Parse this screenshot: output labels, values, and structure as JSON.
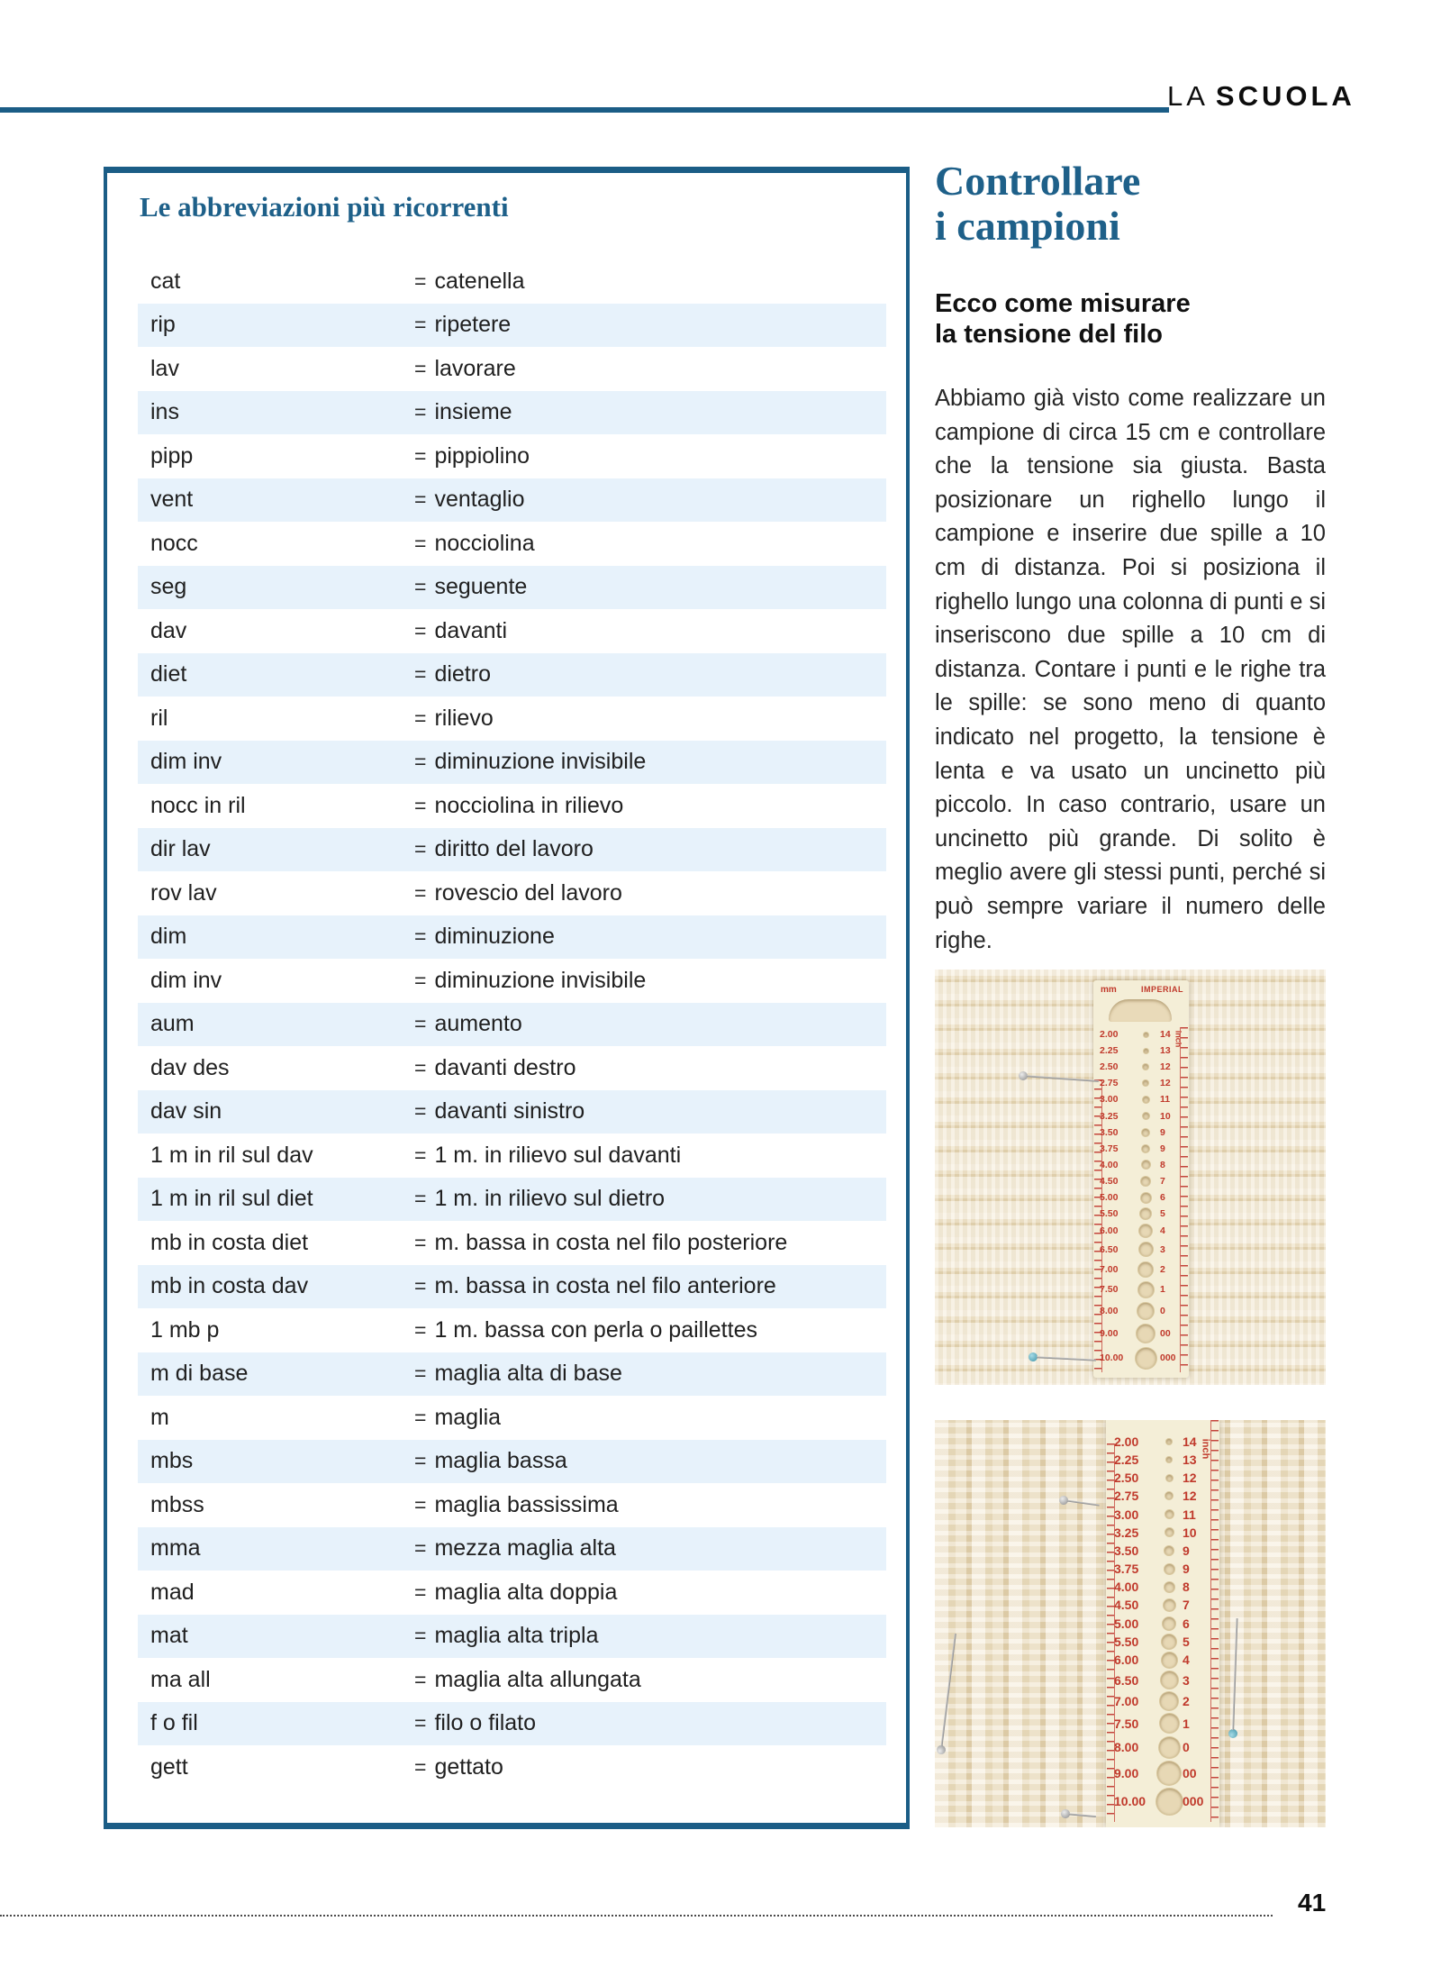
{
  "header": {
    "section_light": "LA",
    "section_bold": "SCUOLA"
  },
  "abbrev_table": {
    "title": "Le abbreviazioni più ricorrenti",
    "equals_sign": "=",
    "rows": [
      {
        "abbr": "cat",
        "meaning": "catenella"
      },
      {
        "abbr": "rip",
        "meaning": "ripetere"
      },
      {
        "abbr": "lav",
        "meaning": "lavorare"
      },
      {
        "abbr": "ins",
        "meaning": "insieme"
      },
      {
        "abbr": "pipp",
        "meaning": "pippiolino"
      },
      {
        "abbr": "vent",
        "meaning": "ventaglio"
      },
      {
        "abbr": "nocc",
        "meaning": "nocciolina"
      },
      {
        "abbr": "seg",
        "meaning": "seguente"
      },
      {
        "abbr": "dav",
        "meaning": "davanti"
      },
      {
        "abbr": "diet",
        "meaning": "dietro"
      },
      {
        "abbr": "ril",
        "meaning": "rilievo"
      },
      {
        "abbr": "dim inv",
        "meaning": "diminuzione invisibile"
      },
      {
        "abbr": "nocc in ril",
        "meaning": "nocciolina in rilievo"
      },
      {
        "abbr": "dir lav",
        "meaning": "diritto del lavoro"
      },
      {
        "abbr": "rov lav",
        "meaning": "rovescio del lavoro"
      },
      {
        "abbr": "dim",
        "meaning": "diminuzione"
      },
      {
        "abbr": "dim inv",
        "meaning": "diminuzione invisibile"
      },
      {
        "abbr": "aum",
        "meaning": "aumento"
      },
      {
        "abbr": "dav des",
        "meaning": "davanti destro"
      },
      {
        "abbr": "dav sin",
        "meaning": "davanti sinistro"
      },
      {
        "abbr": "1 m in ril sul dav",
        "meaning": "1 m. in rilievo sul davanti"
      },
      {
        "abbr": "1 m in ril sul diet",
        "meaning": "1 m. in rilievo sul dietro"
      },
      {
        "abbr": "mb in costa diet",
        "meaning": "m. bassa in costa nel filo posteriore"
      },
      {
        "abbr": "mb in costa dav",
        "meaning": "m. bassa in costa nel filo anteriore"
      },
      {
        "abbr": "1 mb p",
        "meaning": "1 m. bassa con perla o paillettes"
      },
      {
        "abbr": "m di base",
        "meaning": "maglia alta di base"
      },
      {
        "abbr": "m",
        "meaning": "maglia"
      },
      {
        "abbr": "mbs",
        "meaning": "maglia bassa"
      },
      {
        "abbr": "mbss",
        "meaning": "maglia bassissima"
      },
      {
        "abbr": "mma",
        "meaning": "mezza maglia alta"
      },
      {
        "abbr": "mad",
        "meaning": "maglia alta doppia"
      },
      {
        "abbr": "mat",
        "meaning": "maglia alta tripla"
      },
      {
        "abbr": "ma all",
        "meaning": "maglia alta allungata"
      },
      {
        "abbr": "f o fil",
        "meaning": "filo o filato"
      },
      {
        "abbr": "gett",
        "meaning": "gettato"
      }
    ]
  },
  "article": {
    "title_line1": "Controllare",
    "title_line2": "i campioni",
    "subtitle_line1": "Ecco come misurare",
    "subtitle_line2": "la tensione del filo",
    "body": "Abbiamo già visto come realizzare un campione di circa 15 cm e controllare che la tensione sia giusta. Basta posizionare un righello lungo il campione e inserire due spille a 10 cm di distanza. Poi si posiziona il righello lungo una colonna di punti e si inseriscono due spille a 10 cm di distanza. Contare i punti e le righe tra le spille: se sono meno di quanto indicato nel progetto, la tensione è lenta e va usato un uncinetto più piccolo. In caso contrario, usare un uncinetto più grande. Di solito è meglio avere gli stessi punti, perché si può sempre variare il numero delle righe."
  },
  "ruler": {
    "mm_label": "mm",
    "imperial_label": "IMPERIAL",
    "inch_label": "inch",
    "sizes": [
      {
        "mm": "2.00",
        "imp": "14"
      },
      {
        "mm": "2.25",
        "imp": "13"
      },
      {
        "mm": "2.50",
        "imp": "12"
      },
      {
        "mm": "2.75",
        "imp": "12"
      },
      {
        "mm": "3.00",
        "imp": "11"
      },
      {
        "mm": "3.25",
        "imp": "10"
      },
      {
        "mm": "3.50",
        "imp": "9"
      },
      {
        "mm": "3.75",
        "imp": "9"
      },
      {
        "mm": "4.00",
        "imp": "8"
      },
      {
        "mm": "4.50",
        "imp": "7"
      },
      {
        "mm": "5.00",
        "imp": "6"
      },
      {
        "mm": "5.50",
        "imp": "5"
      },
      {
        "mm": "6.00",
        "imp": "4"
      },
      {
        "mm": "6.50",
        "imp": "3"
      },
      {
        "mm": "7.00",
        "imp": "2"
      },
      {
        "mm": "7.50",
        "imp": "1"
      },
      {
        "mm": "8.00",
        "imp": "0"
      },
      {
        "mm": "9.00",
        "imp": "00"
      },
      {
        "mm": "10.00",
        "imp": "000"
      }
    ]
  },
  "footer": {
    "page_number": "41"
  },
  "colors": {
    "accent_blue": "#1b5d86",
    "title_blue": "#1e6089",
    "row_light_blue": "#e7f2fb",
    "ruler_red": "#c0392b",
    "fabric_cream": "#f4ecda"
  }
}
